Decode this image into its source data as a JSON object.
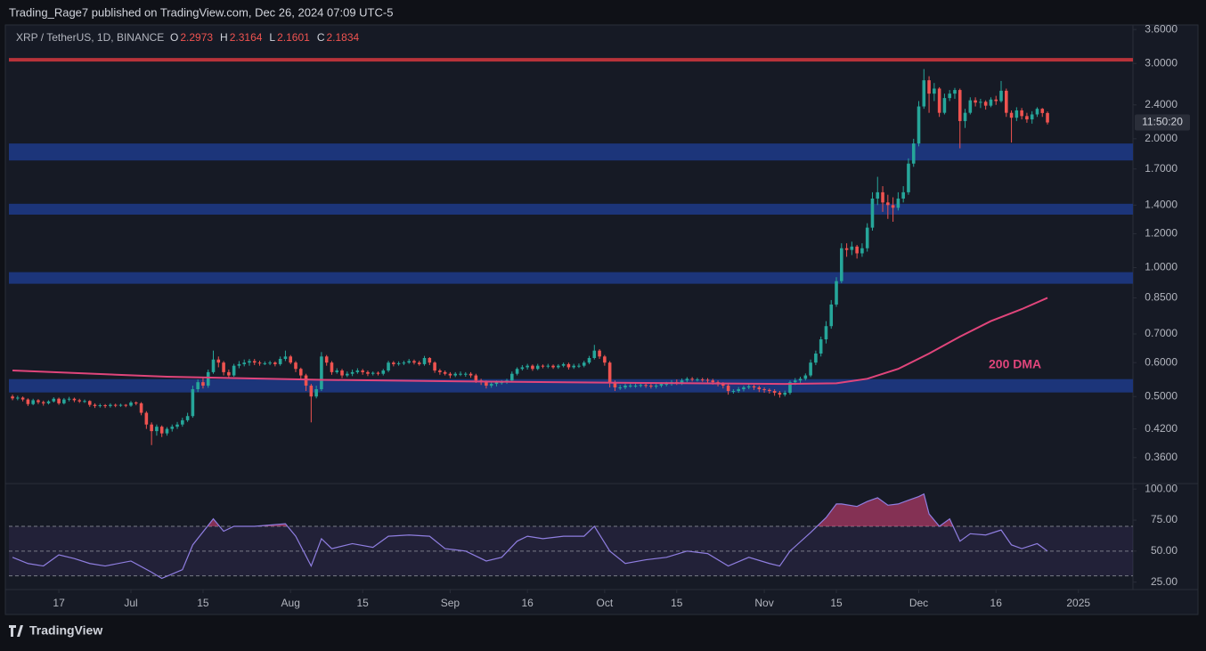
{
  "page": {
    "byline": "Trading_Rage7 published on TradingView.com, Dec 26, 2024 07:09 UTC-5",
    "brand": "TradingView"
  },
  "chart_data": [
    {
      "type": "candlestick",
      "title": "XRP / TetherUS, 1D, BINANCE",
      "ohlc_labels": [
        "O",
        "H",
        "L",
        "C"
      ],
      "up_color": "#26a69a",
      "down_color": "#ef5350",
      "log_scale": true,
      "xlim": [
        -0.7,
        217.6
      ],
      "xticks": [
        {
          "value": 9,
          "label": "17"
        },
        {
          "value": 23,
          "label": "Jul"
        },
        {
          "value": 37,
          "label": "15"
        },
        {
          "value": 54,
          "label": "Aug"
        },
        {
          "value": 68,
          "label": "15"
        },
        {
          "value": 85,
          "label": "Sep"
        },
        {
          "value": 100,
          "label": "16"
        },
        {
          "value": 115,
          "label": "Oct"
        },
        {
          "value": 129,
          "label": "15"
        },
        {
          "value": 146,
          "label": "Nov"
        },
        {
          "value": 160,
          "label": "15"
        },
        {
          "value": 176,
          "label": "Dec"
        },
        {
          "value": 191,
          "label": "16"
        },
        {
          "value": 207,
          "label": "2025"
        }
      ],
      "ylim": [
        0.316,
        3.69
      ],
      "yticks": [
        {
          "value": 0.36,
          "label": "0.3600"
        },
        {
          "value": 0.42,
          "label": "0.4200"
        },
        {
          "value": 0.5,
          "label": "0.5000"
        },
        {
          "value": 0.6,
          "label": "0.6000"
        },
        {
          "value": 0.7,
          "label": "0.7000"
        },
        {
          "value": 0.85,
          "label": "0.8500"
        },
        {
          "value": 1,
          "label": "1.0000"
        },
        {
          "value": 1.2,
          "label": "1.2000"
        },
        {
          "value": 1.4,
          "label": "1.4000"
        },
        {
          "value": 1.7,
          "label": "1.7000"
        },
        {
          "value": 2,
          "label": "2.0000"
        },
        {
          "value": 2.4,
          "label": "2.4000"
        },
        {
          "value": 3,
          "label": "3.0000"
        },
        {
          "value": 3.6,
          "label": "3.6000"
        }
      ],
      "zones": [
        {
          "from": 1.78,
          "to": 1.95
        },
        {
          "from": 1.33,
          "to": 1.41
        },
        {
          "from": 0.917,
          "to": 0.976
        },
        {
          "from": 0.511,
          "to": 0.549
        }
      ],
      "zone_color": "#1c357a",
      "level": {
        "value": 3.06,
        "color": "#b8333a"
      },
      "countdown": "11:50:20",
      "ma": {
        "name": "200 DMA",
        "color": "#e0457b",
        "x": [
          0,
          30,
          60,
          90,
          120,
          150,
          160,
          166,
          172,
          178,
          184,
          190,
          196,
          201
        ],
        "values": [
          0.575,
          0.556,
          0.547,
          0.542,
          0.538,
          0.535,
          0.537,
          0.55,
          0.58,
          0.63,
          0.69,
          0.75,
          0.8,
          0.85
        ]
      },
      "open": [
        0.5,
        0.495,
        0.497,
        0.492,
        0.48,
        0.49,
        0.485,
        0.482,
        0.487,
        0.494,
        0.482,
        0.492,
        0.494,
        0.49,
        0.487,
        0.488,
        0.478,
        0.475,
        0.477,
        0.475,
        0.478,
        0.476,
        0.478,
        0.476,
        0.484,
        0.482,
        0.458,
        0.43,
        0.415,
        0.425,
        0.41,
        0.42,
        0.425,
        0.43,
        0.44,
        0.45,
        0.52,
        0.54,
        0.53,
        0.57,
        0.61,
        0.6,
        0.57,
        0.56,
        0.59,
        0.595,
        0.6,
        0.605,
        0.6,
        0.598,
        0.598,
        0.6,
        0.595,
        0.612,
        0.62,
        0.6,
        0.58,
        0.56,
        0.53,
        0.5,
        0.52,
        0.62,
        0.6,
        0.57,
        0.575,
        0.56,
        0.565,
        0.57,
        0.575,
        0.57,
        0.565,
        0.568,
        0.565,
        0.575,
        0.6,
        0.595,
        0.598,
        0.6,
        0.605,
        0.6,
        0.595,
        0.615,
        0.6,
        0.575,
        0.57,
        0.565,
        0.56,
        0.565,
        0.565,
        0.565,
        0.56,
        0.545,
        0.54,
        0.53,
        0.535,
        0.54,
        0.54,
        0.545,
        0.565,
        0.58,
        0.585,
        0.59,
        0.58,
        0.59,
        0.588,
        0.59,
        0.585,
        0.59,
        0.595,
        0.585,
        0.59,
        0.59,
        0.6,
        0.615,
        0.64,
        0.62,
        0.6,
        0.54,
        0.525,
        0.525,
        0.53,
        0.53,
        0.53,
        0.532,
        0.53,
        0.528,
        0.53,
        0.535,
        0.535,
        0.54,
        0.538,
        0.545,
        0.55,
        0.548,
        0.548,
        0.547,
        0.545,
        0.54,
        0.535,
        0.53,
        0.515,
        0.515,
        0.52,
        0.525,
        0.528,
        0.525,
        0.52,
        0.518,
        0.515,
        0.51,
        0.505,
        0.51,
        0.54,
        0.545,
        0.55,
        0.56,
        0.6,
        0.63,
        0.68,
        0.73,
        0.82,
        0.93,
        1.11,
        1.1,
        1.12,
        1.08,
        1.11,
        1.24,
        1.45,
        1.5,
        1.42,
        1.4,
        1.38,
        1.45,
        1.5,
        1.75,
        1.95,
        2.38,
        2.74,
        2.55,
        2.62,
        2.3,
        2.49,
        2.55,
        2.6,
        2.2,
        2.3,
        2.46,
        2.43,
        2.44,
        2.39,
        2.47,
        2.45,
        2.59,
        2.3,
        2.24,
        2.33,
        2.26,
        2.22,
        2.28,
        2.35,
        2.2973
      ],
      "high": [
        0.505,
        0.502,
        0.5,
        0.495,
        0.494,
        0.493,
        0.489,
        0.49,
        0.498,
        0.497,
        0.496,
        0.499,
        0.497,
        0.494,
        0.492,
        0.49,
        0.482,
        0.481,
        0.48,
        0.482,
        0.481,
        0.481,
        0.48,
        0.488,
        0.487,
        0.485,
        0.462,
        0.435,
        0.43,
        0.428,
        0.424,
        0.43,
        0.436,
        0.446,
        0.458,
        0.53,
        0.548,
        0.552,
        0.578,
        0.64,
        0.62,
        0.605,
        0.578,
        0.596,
        0.605,
        0.61,
        0.612,
        0.612,
        0.606,
        0.604,
        0.606,
        0.604,
        0.62,
        0.64,
        0.625,
        0.605,
        0.584,
        0.565,
        0.535,
        0.53,
        0.635,
        0.625,
        0.605,
        0.582,
        0.58,
        0.572,
        0.578,
        0.582,
        0.58,
        0.575,
        0.572,
        0.572,
        0.58,
        0.606,
        0.605,
        0.604,
        0.606,
        0.612,
        0.61,
        0.606,
        0.622,
        0.618,
        0.604,
        0.58,
        0.575,
        0.57,
        0.57,
        0.572,
        0.57,
        0.57,
        0.565,
        0.55,
        0.545,
        0.54,
        0.545,
        0.546,
        0.55,
        0.572,
        0.585,
        0.592,
        0.596,
        0.594,
        0.596,
        0.594,
        0.596,
        0.594,
        0.595,
        0.6,
        0.6,
        0.596,
        0.597,
        0.606,
        0.622,
        0.66,
        0.645,
        0.625,
        0.605,
        0.545,
        0.532,
        0.535,
        0.536,
        0.536,
        0.538,
        0.537,
        0.535,
        0.535,
        0.54,
        0.541,
        0.546,
        0.548,
        0.551,
        0.555,
        0.555,
        0.553,
        0.553,
        0.552,
        0.55,
        0.545,
        0.54,
        0.535,
        0.52,
        0.526,
        0.53,
        0.534,
        0.532,
        0.53,
        0.525,
        0.522,
        0.52,
        0.515,
        0.516,
        0.545,
        0.552,
        0.556,
        0.566,
        0.61,
        0.64,
        0.69,
        0.75,
        0.84,
        0.95,
        1.14,
        1.14,
        1.15,
        1.13,
        1.14,
        1.27,
        1.5,
        1.63,
        1.55,
        1.48,
        1.46,
        1.5,
        1.55,
        1.8,
        2.0,
        2.45,
        2.91,
        2.8,
        2.7,
        2.64,
        2.55,
        2.6,
        2.63,
        2.62,
        2.35,
        2.5,
        2.5,
        2.48,
        2.46,
        2.5,
        2.52,
        2.73,
        2.62,
        2.33,
        2.37,
        2.36,
        2.3,
        2.32,
        2.37,
        2.36,
        2.3164
      ],
      "low": [
        0.49,
        0.49,
        0.487,
        0.475,
        0.477,
        0.48,
        0.476,
        0.479,
        0.484,
        0.478,
        0.479,
        0.487,
        0.485,
        0.483,
        0.483,
        0.473,
        0.47,
        0.471,
        0.47,
        0.471,
        0.472,
        0.473,
        0.472,
        0.473,
        0.477,
        0.452,
        0.42,
        0.385,
        0.405,
        0.402,
        0.405,
        0.414,
        0.42,
        0.425,
        0.436,
        0.446,
        0.512,
        0.522,
        0.524,
        0.565,
        0.585,
        0.56,
        0.552,
        0.556,
        0.582,
        0.588,
        0.59,
        0.592,
        0.59,
        0.592,
        0.592,
        0.588,
        0.59,
        0.605,
        0.595,
        0.57,
        0.548,
        0.515,
        0.435,
        0.495,
        0.515,
        0.59,
        0.562,
        0.565,
        0.552,
        0.555,
        0.558,
        0.565,
        0.562,
        0.558,
        0.56,
        0.56,
        0.56,
        0.57,
        0.588,
        0.59,
        0.592,
        0.596,
        0.594,
        0.59,
        0.59,
        0.592,
        0.568,
        0.562,
        0.56,
        0.552,
        0.555,
        0.558,
        0.556,
        0.553,
        0.538,
        0.532,
        0.522,
        0.524,
        0.528,
        0.533,
        0.535,
        0.54,
        0.56,
        0.575,
        0.578,
        0.574,
        0.576,
        0.582,
        0.582,
        0.58,
        0.58,
        0.585,
        0.578,
        0.58,
        0.583,
        0.585,
        0.595,
        0.61,
        0.612,
        0.59,
        0.525,
        0.515,
        0.518,
        0.52,
        0.524,
        0.524,
        0.525,
        0.524,
        0.522,
        0.522,
        0.525,
        0.528,
        0.53,
        0.532,
        0.532,
        0.54,
        0.542,
        0.542,
        0.541,
        0.538,
        0.533,
        0.528,
        0.522,
        0.505,
        0.508,
        0.51,
        0.514,
        0.52,
        0.518,
        0.512,
        0.51,
        0.508,
        0.502,
        0.497,
        0.5,
        0.505,
        0.532,
        0.538,
        0.545,
        0.555,
        0.592,
        0.62,
        0.665,
        0.72,
        0.81,
        0.92,
        1.06,
        1.07,
        1.05,
        1.06,
        1.09,
        1.22,
        1.4,
        1.35,
        1.3,
        1.28,
        1.36,
        1.42,
        1.48,
        1.72,
        1.92,
        2.35,
        2.3,
        2.45,
        2.25,
        2.28,
        2.45,
        2.48,
        1.9,
        2.12,
        2.28,
        2.38,
        2.36,
        2.34,
        2.37,
        2.4,
        2.43,
        2.25,
        1.96,
        2.2,
        2.22,
        2.18,
        2.17,
        2.25,
        2.25,
        2.1601
      ],
      "close": [
        0.495,
        0.497,
        0.492,
        0.48,
        0.49,
        0.485,
        0.482,
        0.487,
        0.494,
        0.482,
        0.492,
        0.494,
        0.49,
        0.487,
        0.488,
        0.478,
        0.475,
        0.477,
        0.475,
        0.478,
        0.476,
        0.478,
        0.476,
        0.484,
        0.482,
        0.458,
        0.43,
        0.415,
        0.425,
        0.41,
        0.42,
        0.425,
        0.43,
        0.44,
        0.45,
        0.52,
        0.54,
        0.53,
        0.57,
        0.61,
        0.6,
        0.57,
        0.56,
        0.59,
        0.595,
        0.6,
        0.605,
        0.6,
        0.598,
        0.598,
        0.6,
        0.595,
        0.612,
        0.62,
        0.6,
        0.58,
        0.56,
        0.53,
        0.5,
        0.52,
        0.62,
        0.6,
        0.57,
        0.575,
        0.56,
        0.565,
        0.57,
        0.575,
        0.57,
        0.565,
        0.568,
        0.565,
        0.575,
        0.6,
        0.595,
        0.598,
        0.6,
        0.605,
        0.6,
        0.595,
        0.615,
        0.6,
        0.575,
        0.57,
        0.565,
        0.56,
        0.565,
        0.565,
        0.565,
        0.56,
        0.545,
        0.54,
        0.53,
        0.535,
        0.54,
        0.54,
        0.545,
        0.565,
        0.58,
        0.585,
        0.59,
        0.58,
        0.59,
        0.588,
        0.59,
        0.585,
        0.59,
        0.595,
        0.585,
        0.59,
        0.59,
        0.6,
        0.615,
        0.64,
        0.62,
        0.6,
        0.54,
        0.525,
        0.525,
        0.53,
        0.53,
        0.53,
        0.532,
        0.53,
        0.528,
        0.53,
        0.535,
        0.535,
        0.54,
        0.538,
        0.545,
        0.55,
        0.548,
        0.548,
        0.547,
        0.545,
        0.54,
        0.535,
        0.53,
        0.515,
        0.515,
        0.52,
        0.525,
        0.528,
        0.525,
        0.52,
        0.518,
        0.515,
        0.51,
        0.505,
        0.51,
        0.54,
        0.545,
        0.55,
        0.56,
        0.6,
        0.63,
        0.68,
        0.73,
        0.82,
        0.93,
        1.11,
        1.1,
        1.12,
        1.08,
        1.11,
        1.24,
        1.45,
        1.5,
        1.42,
        1.4,
        1.38,
        1.45,
        1.5,
        1.75,
        1.95,
        2.38,
        2.74,
        2.55,
        2.62,
        2.3,
        2.49,
        2.55,
        2.6,
        2.2,
        2.3,
        2.46,
        2.43,
        2.44,
        2.39,
        2.47,
        2.45,
        2.59,
        2.3,
        2.24,
        2.33,
        2.26,
        2.22,
        2.28,
        2.35,
        2.2973,
        2.1834
      ]
    },
    {
      "type": "line",
      "xlim": [
        -0.7,
        217.6
      ],
      "ylim": [
        19,
        103
      ],
      "yticks": [
        {
          "value": 25,
          "label": "25.00"
        },
        {
          "value": 50,
          "label": "50.00"
        },
        {
          "value": 75,
          "label": "75.00"
        },
        {
          "value": 100,
          "label": "100.00"
        }
      ],
      "levels": [
        30,
        50,
        70
      ],
      "band_color": "#7e57c2",
      "overbought_color": "#e0457b",
      "series": [
        {
          "color": "#8f7ee0",
          "x": [
            0,
            3,
            6,
            9,
            12,
            15,
            18,
            23,
            27,
            29,
            33,
            35,
            39,
            41,
            43,
            47,
            53,
            55,
            58,
            60,
            62,
            66,
            70,
            73,
            77,
            81,
            84,
            88,
            92,
            95,
            98,
            100,
            103,
            107,
            111,
            113,
            116,
            119,
            123,
            127,
            131,
            135,
            139,
            143,
            147,
            149,
            151,
            155,
            158,
            160,
            161,
            164,
            166,
            168,
            170,
            172,
            174,
            176,
            177,
            178,
            180,
            182,
            184,
            186,
            189,
            192,
            194,
            196,
            199,
            201
          ],
          "values": [
            45,
            40,
            38,
            47,
            44,
            40,
            38,
            42,
            33,
            28,
            35,
            55,
            76,
            66,
            70,
            70,
            72,
            62,
            38,
            60,
            52,
            56,
            53,
            62,
            63,
            62,
            52,
            50,
            42,
            45,
            58,
            62,
            60,
            62,
            62,
            70,
            50,
            40,
            43,
            45,
            50,
            48,
            38,
            45,
            40,
            38,
            50,
            65,
            77,
            88,
            88,
            86,
            90,
            93,
            87,
            88,
            91,
            94,
            96,
            80,
            70,
            76,
            58,
            64,
            63,
            67,
            55,
            52,
            56,
            50
          ]
        }
      ]
    }
  ]
}
